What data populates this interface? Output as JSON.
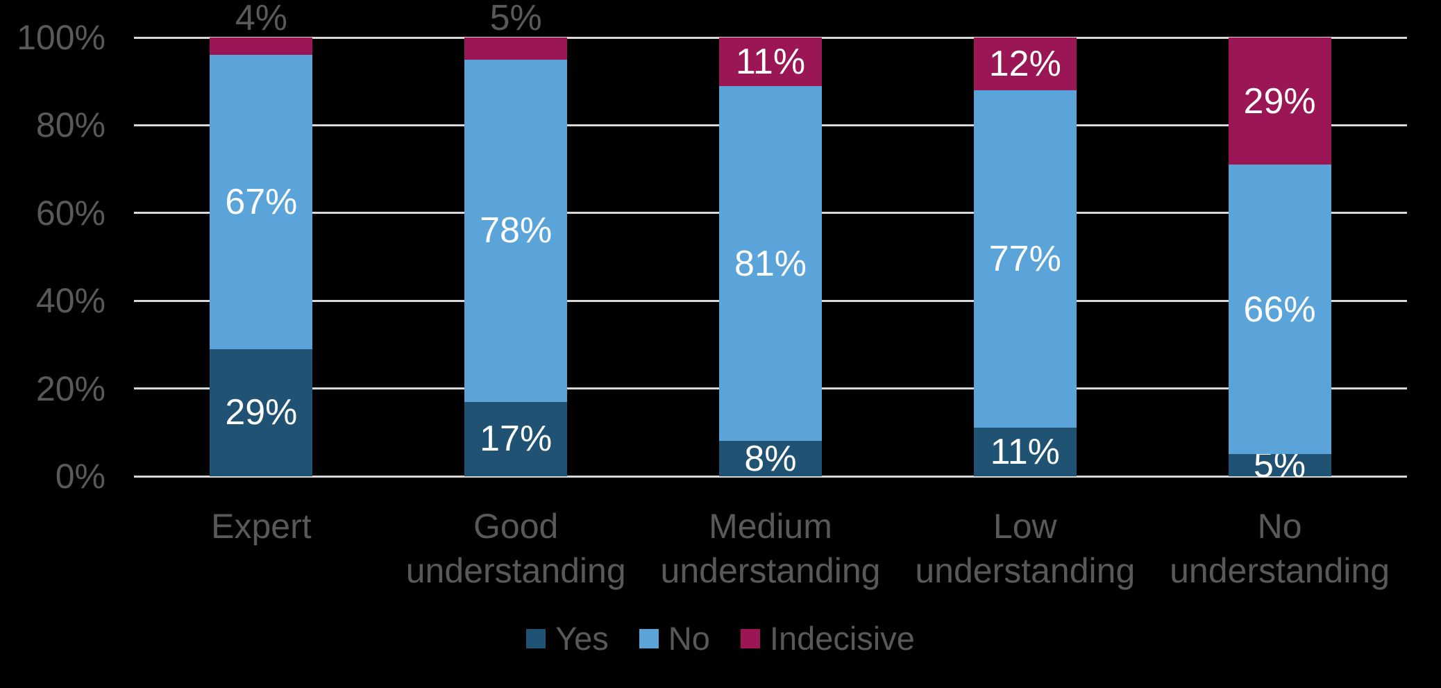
{
  "chart_data": {
    "type": "bar",
    "stacked": true,
    "title": "",
    "xlabel": "",
    "ylabel": "",
    "categories": [
      "Expert",
      "Good understanding",
      "Medium understanding",
      "Low understanding",
      "No understanding"
    ],
    "category_label_lines": [
      [
        "Expert"
      ],
      [
        "Good",
        "understanding"
      ],
      [
        "Medium",
        "understanding"
      ],
      [
        "Low",
        "understanding"
      ],
      [
        "No",
        "understanding"
      ]
    ],
    "series": [
      {
        "name": "Yes",
        "color": "#205273",
        "values": [
          29,
          17,
          8,
          11,
          5
        ]
      },
      {
        "name": "No",
        "color": "#5BA4DA",
        "values": [
          67,
          78,
          81,
          77,
          66
        ]
      },
      {
        "name": "Indecisive",
        "color": "#9A1655",
        "values": [
          4,
          5,
          11,
          12,
          29
        ]
      }
    ],
    "data_label_format": "percent",
    "y_ticks": [
      "100%",
      "80%",
      "60%",
      "40%",
      "20%",
      "0%"
    ],
    "ylim": [
      0,
      100
    ],
    "grid": true,
    "legend_position": "bottom",
    "legend_entries": [
      "Yes",
      "No",
      "Indecisive"
    ]
  },
  "styles": {
    "background_color": "#000000",
    "grid_color": "#D8D8D8",
    "axis_text_color": "#595959",
    "inside_label_color": "#FFFFFF",
    "outside_label_color": "#595959"
  }
}
